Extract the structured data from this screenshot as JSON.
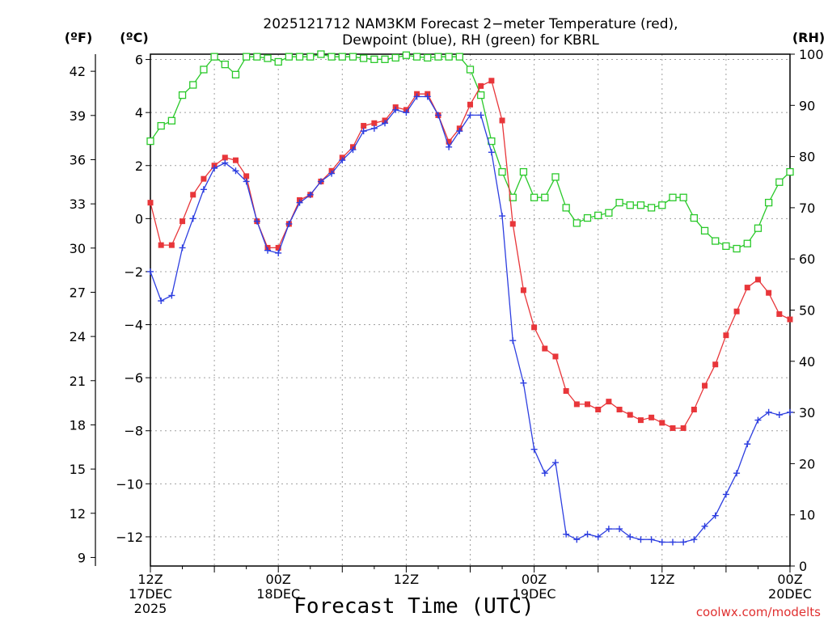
{
  "chart_data": {
    "type": "line",
    "title_line1": "2025121712 NAM3KM Forecast 2−meter Temperature (red),",
    "title_line2": "Dewpoint (blue), RH (green) for KBRL",
    "xlabel": "Forecast Time (UTC)",
    "credit": "coolwx.com/modelts",
    "left_unit_f": "(ºF)",
    "left_unit_c": "(ºC)",
    "right_unit": "(RH)",
    "x_range_hours": [
      0,
      60
    ],
    "x_ticks": [
      {
        "hour": 0,
        "line1": "12Z",
        "line2": "17DEC",
        "line3": "2025"
      },
      {
        "hour": 12,
        "line1": "00Z",
        "line2": "18DEC",
        "line3": ""
      },
      {
        "hour": 24,
        "line1": "12Z",
        "line2": "",
        "line3": ""
      },
      {
        "hour": 36,
        "line1": "00Z",
        "line2": "19DEC",
        "line3": ""
      },
      {
        "hour": 48,
        "line1": "12Z",
        "line2": "",
        "line3": ""
      },
      {
        "hour": 60,
        "line1": "00Z",
        "line2": "20DEC",
        "line3": ""
      }
    ],
    "celsius_axis": {
      "range": [
        -13.1,
        6.2
      ],
      "ticks": [
        6,
        4,
        2,
        0,
        -2,
        -4,
        -6,
        -8,
        -10,
        -12
      ],
      "tick_labels": [
        "6",
        "4",
        "2",
        "0",
        "−2",
        "−4",
        "−6",
        "−8",
        "−10",
        "−12"
      ]
    },
    "fahrenheit_axis": {
      "ticks": [
        42,
        39,
        36,
        33,
        30,
        27,
        24,
        21,
        18,
        15,
        12,
        9
      ],
      "tick_labels": [
        "42",
        "39",
        "36",
        "33",
        "30",
        "27",
        "24",
        "21",
        "18",
        "15",
        "12",
        "9"
      ]
    },
    "rh_axis": {
      "range": [
        0,
        100
      ],
      "ticks": [
        100,
        90,
        80,
        70,
        60,
        50,
        40,
        30,
        20,
        10,
        0
      ],
      "tick_labels": [
        "100",
        "90",
        "80",
        "70",
        "60",
        "50",
        "40",
        "30",
        "20",
        "10",
        "0"
      ]
    },
    "colors": {
      "temperature": "#e8363a",
      "dewpoint": "#2d3ee0",
      "rh": "#2ac92a",
      "grid": "#a0a0a0"
    },
    "series": [
      {
        "name": "Temperature",
        "units": "C",
        "marker": "square",
        "x": [
          0,
          1,
          2,
          3,
          4,
          5,
          6,
          7,
          8,
          9,
          10,
          11,
          12,
          13,
          14,
          15,
          16,
          17,
          18,
          19,
          20,
          21,
          22,
          23,
          24,
          25,
          26,
          27,
          28,
          29,
          30,
          31,
          32,
          33,
          34,
          35,
          36,
          37,
          38,
          39,
          40,
          41,
          42,
          43,
          44,
          45,
          46,
          47,
          48,
          49,
          50,
          51,
          52,
          53,
          54,
          55,
          56,
          57,
          58,
          59,
          60
        ],
        "values": [
          0.6,
          -1.0,
          -1.0,
          -0.1,
          0.9,
          1.5,
          2.0,
          2.3,
          2.2,
          1.6,
          -0.1,
          -1.1,
          -1.1,
          -0.2,
          0.7,
          0.9,
          1.4,
          1.8,
          2.3,
          2.7,
          3.5,
          3.6,
          3.7,
          4.2,
          4.1,
          4.7,
          4.7,
          3.9,
          2.9,
          3.4,
          4.3,
          5.0,
          5.2,
          3.7,
          -0.2,
          -2.7,
          -4.1,
          -4.9,
          -5.2,
          -6.5,
          -7.0,
          -7.0,
          -7.2,
          -6.9,
          -7.2,
          -7.4,
          -7.6,
          -7.5,
          -7.7,
          -7.9,
          -7.9,
          -7.2,
          -6.3,
          -5.5,
          -4.4,
          -3.5,
          -2.6,
          -2.3,
          -2.8,
          -3.6,
          -3.8
        ]
      },
      {
        "name": "Dewpoint",
        "units": "C",
        "marker": "plus",
        "x": [
          0,
          1,
          2,
          3,
          4,
          5,
          6,
          7,
          8,
          9,
          10,
          11,
          12,
          13,
          14,
          15,
          16,
          17,
          18,
          19,
          20,
          21,
          22,
          23,
          24,
          25,
          26,
          27,
          28,
          29,
          30,
          31,
          32,
          33,
          34,
          35,
          36,
          37,
          38,
          39,
          40,
          41,
          42,
          43,
          44,
          45,
          46,
          47,
          48,
          49,
          50,
          51,
          52,
          53,
          54,
          55,
          56,
          57,
          58,
          59,
          60
        ],
        "values": [
          -2.0,
          -3.1,
          -2.9,
          -1.1,
          0.0,
          1.1,
          1.9,
          2.1,
          1.8,
          1.4,
          -0.1,
          -1.2,
          -1.3,
          -0.2,
          0.6,
          0.9,
          1.4,
          1.7,
          2.2,
          2.6,
          3.3,
          3.4,
          3.6,
          4.1,
          4.0,
          4.6,
          4.6,
          3.9,
          2.7,
          3.3,
          3.9,
          3.9,
          2.5,
          0.1,
          -4.6,
          -6.2,
          -8.7,
          -9.6,
          -9.2,
          -11.9,
          -12.1,
          -11.9,
          -12.0,
          -11.7,
          -11.7,
          -12.0,
          -12.1,
          -12.1,
          -12.2,
          -12.2,
          -12.2,
          -12.1,
          -11.6,
          -11.2,
          -10.4,
          -9.6,
          -8.5,
          -7.6,
          -7.3,
          -7.4,
          -7.3
        ]
      },
      {
        "name": "RH",
        "units": "%",
        "marker": "open-square",
        "x": [
          0,
          1,
          2,
          3,
          4,
          5,
          6,
          7,
          8,
          9,
          10,
          11,
          12,
          13,
          14,
          15,
          16,
          17,
          18,
          19,
          20,
          21,
          22,
          23,
          24,
          25,
          26,
          27,
          28,
          29,
          30,
          31,
          32,
          33,
          34,
          35,
          36,
          37,
          38,
          39,
          40,
          41,
          42,
          43,
          44,
          45,
          46,
          47,
          48,
          49,
          50,
          51,
          52,
          53,
          54,
          55,
          56,
          57,
          58,
          59,
          60
        ],
        "values": [
          83,
          86,
          87,
          92,
          94,
          97,
          99.5,
          98,
          96,
          99.5,
          99.5,
          99.2,
          98.5,
          99.5,
          99.5,
          99.5,
          100,
          99.5,
          99.5,
          99.5,
          99.2,
          99,
          99,
          99.3,
          99.8,
          99.5,
          99.3,
          99.5,
          99.5,
          99.5,
          97,
          92,
          83,
          77,
          72,
          77,
          72,
          72,
          76,
          70,
          67,
          68,
          68.5,
          69,
          71,
          70.5,
          70.5,
          70,
          70.5,
          72,
          72,
          68,
          65.5,
          63.5,
          62.5,
          62,
          63,
          66,
          71,
          75,
          77
        ]
      }
    ]
  }
}
